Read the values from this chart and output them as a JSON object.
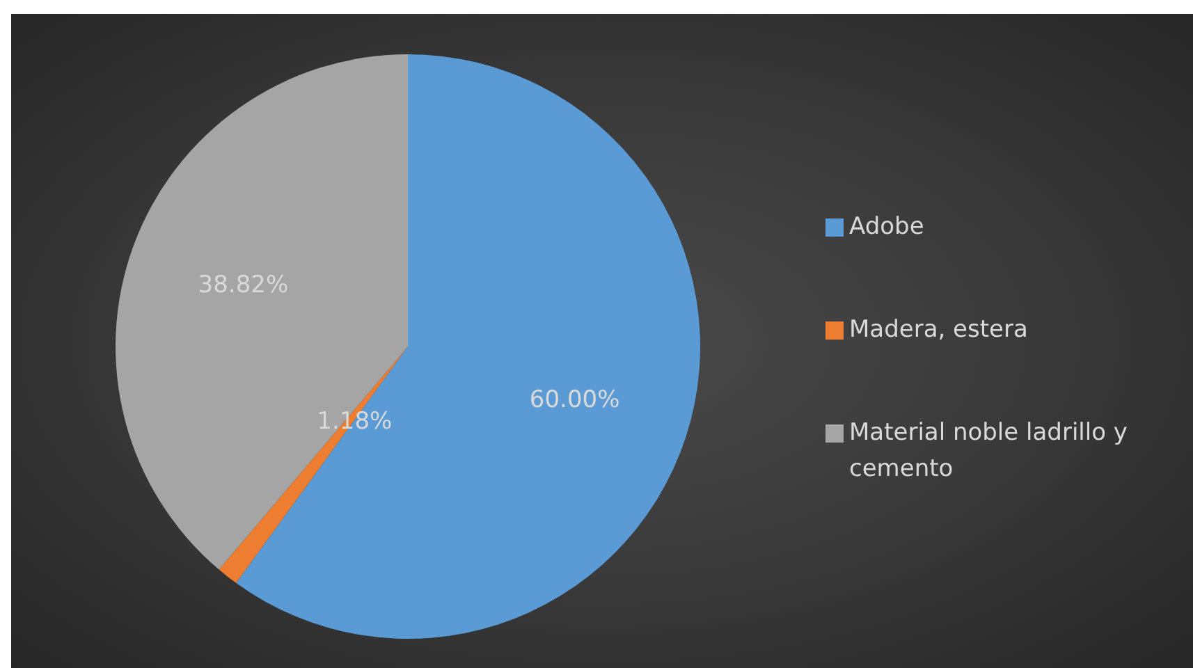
{
  "chart_data": {
    "type": "pie",
    "categories": [
      "Adobe",
      "Madera, estera",
      "Material noble ladrillo y cemento"
    ],
    "values": [
      60.0,
      1.18,
      38.82
    ],
    "colors": [
      "#5b9bd5",
      "#ed7d31",
      "#a5a5a5"
    ],
    "value_labels": [
      "60.00%",
      "1.18%",
      "38.82%"
    ],
    "legend": "right"
  }
}
